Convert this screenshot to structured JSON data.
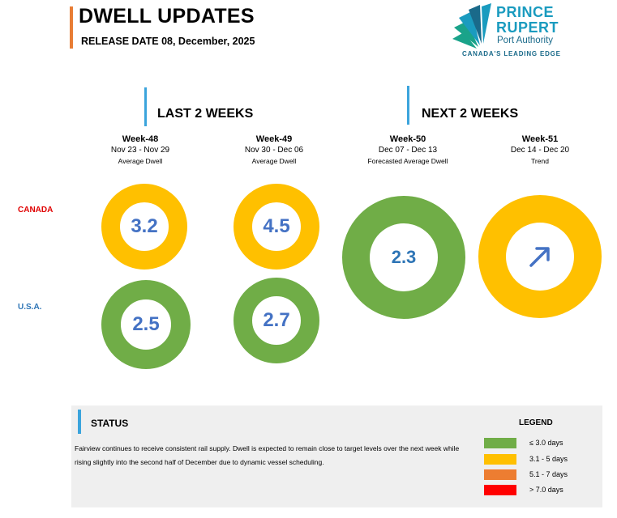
{
  "header": {
    "title": "DWELL UPDATES",
    "release_date": "RELEASE DATE 08, December, 2025"
  },
  "logo": {
    "line1": "PRINCE",
    "line2": "RUPERT",
    "line3": "Port Authority",
    "tagline": "CANADA'S LEADING EDGE",
    "colors": {
      "teal": "#1a9bbf",
      "dark": "#1a6a8a",
      "green": "#1aa38a"
    }
  },
  "sections": {
    "last": "LAST 2 WEEKS",
    "next": "NEXT 2 WEEKS"
  },
  "weeks": [
    {
      "week": "Week-48",
      "range": "Nov 23 - Nov 29",
      "sub": "Average Dwell"
    },
    {
      "week": "Week-49",
      "range": "Nov 30 - Dec 06",
      "sub": "Average Dwell"
    },
    {
      "week": "Week-50",
      "range": "Dec 07 - Dec 13",
      "sub": "Forecasted Average Dwell"
    },
    {
      "week": "Week-51",
      "range": "Dec 14 - Dec 20",
      "sub": "Trend"
    }
  ],
  "countries": {
    "canada": {
      "label": "CANADA",
      "color": "#e00000"
    },
    "usa": {
      "label": "U.S.A.",
      "color": "#2e75b6"
    }
  },
  "values": {
    "canada_w48": {
      "value": "3.2",
      "color": "#ffc000"
    },
    "canada_w49": {
      "value": "4.5",
      "color": "#ffc000"
    },
    "usa_w48": {
      "value": "2.5",
      "color": "#70ad47"
    },
    "usa_w49": {
      "value": "2.7",
      "color": "#70ad47"
    },
    "forecast_w50": {
      "value": "2.3",
      "color": "#70ad47"
    },
    "trend_w51": {
      "icon": "arrow-up-right-icon",
      "color": "#ffc000"
    }
  },
  "status": {
    "title": "STATUS",
    "text": "Fairview continues to receive consistent rail supply. Dwell is expected to remain close to target levels over the next week while rising slightly into the second half of December due to dynamic vessel scheduling."
  },
  "legend": {
    "title": "LEGEND",
    "items": [
      {
        "label": "≤ 3.0 days",
        "color": "#70ad47"
      },
      {
        "label": "3.1 - 5 days",
        "color": "#ffc000"
      },
      {
        "label": "5.1 - 7 days",
        "color": "#ed7d31"
      },
      {
        "label": "> 7.0 days",
        "color": "#ff0000"
      }
    ]
  }
}
